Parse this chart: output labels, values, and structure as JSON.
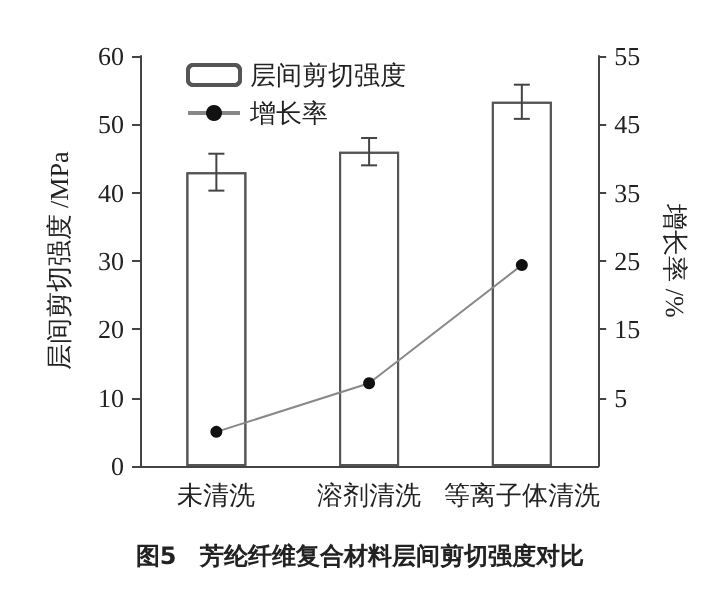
{
  "chart_data": {
    "type": "bar",
    "title": "图5　芳纶纤维复合材料层间剪切强度对比",
    "categories": [
      "未清洗",
      "溶剂清洗",
      "等离子体清洗"
    ],
    "ylabel": "层间剪切强度 /MPa",
    "y2label": "增长率 /%",
    "ylim": [
      0,
      60
    ],
    "yticks": [
      0,
      10,
      20,
      30,
      40,
      50,
      60
    ],
    "y2lim": [
      -5,
      55
    ],
    "y2ticks": [
      5,
      15,
      25,
      35,
      45,
      55
    ],
    "series": [
      {
        "name": "层间剪切强度",
        "color": "#555555",
        "values": [
          43,
          46,
          53.3
        ],
        "errors": [
          2.7,
          2,
          2.5
        ]
      },
      {
        "name": "增长率",
        "type": "line",
        "axis": "y2",
        "color": "#888888",
        "values": [
          0,
          7.1,
          24.4
        ]
      }
    ],
    "marker": "circle",
    "legend": "top left",
    "grid": false
  }
}
